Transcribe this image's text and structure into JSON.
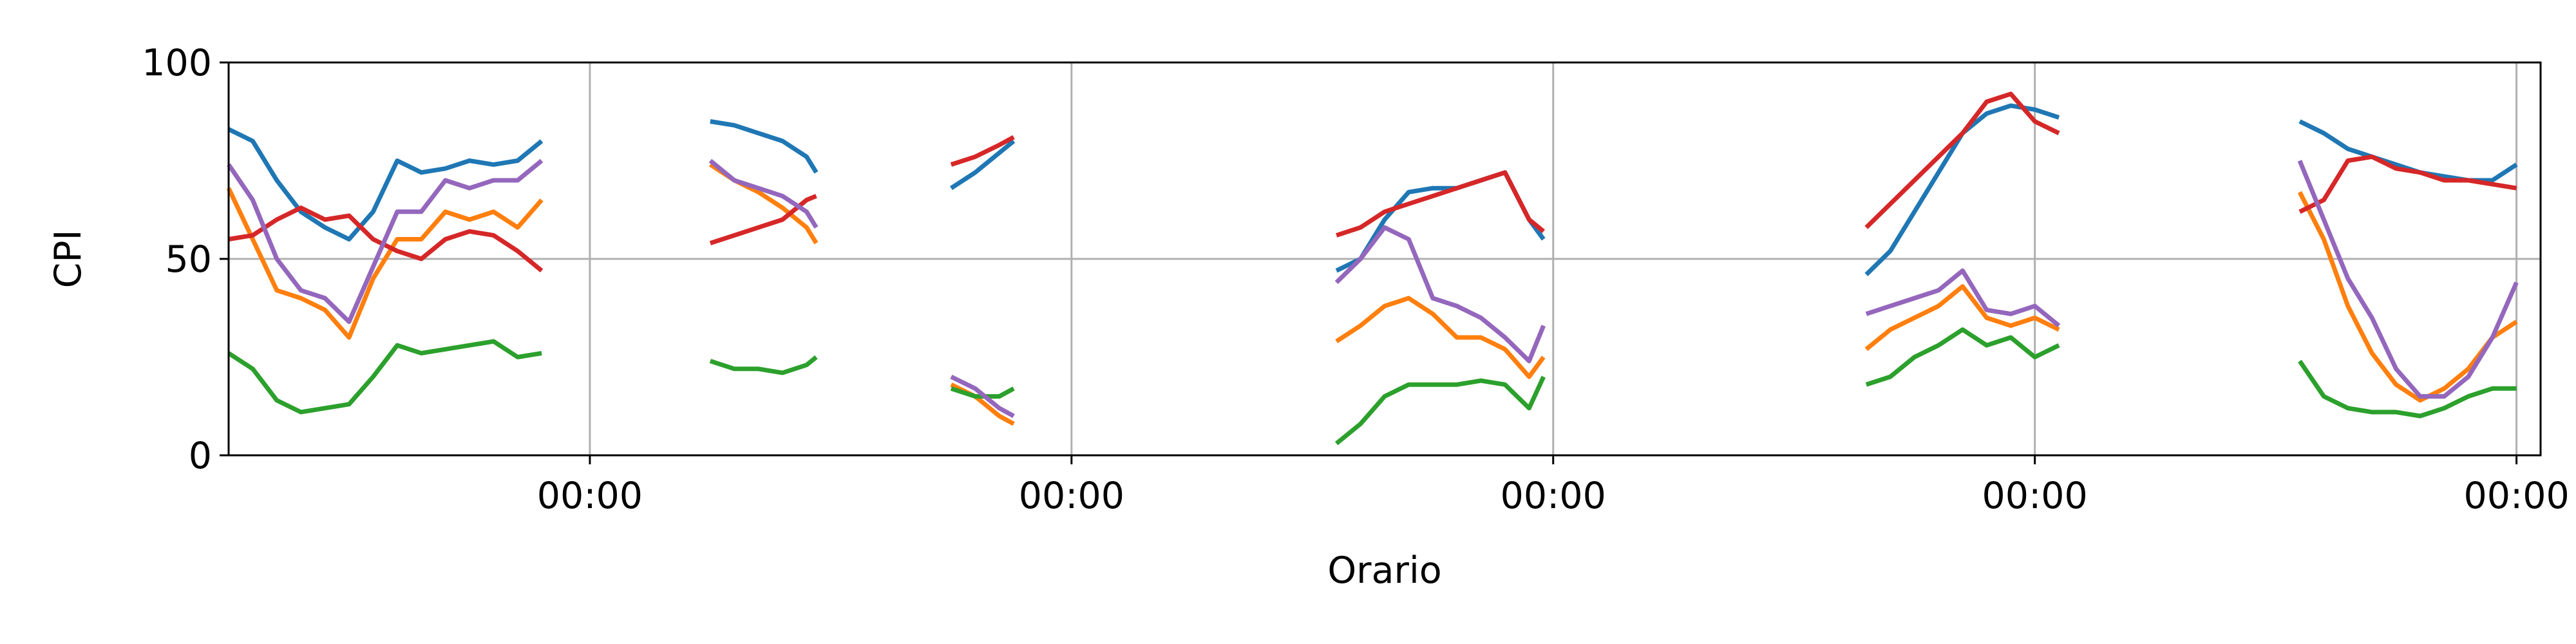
{
  "chart_data": {
    "type": "line",
    "title": "",
    "xlabel": "Orario",
    "ylabel": "CPI",
    "ylim": [
      0,
      100
    ],
    "yticks": [
      0,
      50,
      100
    ],
    "x_range_days": [
      0,
      4.8
    ],
    "xticks": [
      {
        "day": 0.75,
        "label": "00:00"
      },
      {
        "day": 1.75,
        "label": "00:00"
      },
      {
        "day": 2.75,
        "label": "00:00"
      },
      {
        "day": 3.75,
        "label": "00:00"
      },
      {
        "day": 4.75,
        "label": "00:00"
      }
    ],
    "grid": true,
    "legend": "none",
    "series": [
      {
        "color": "#1f77b4",
        "segments": [
          [
            [
              0.0,
              83
            ],
            [
              0.05,
              80
            ],
            [
              0.1,
              70
            ],
            [
              0.15,
              62
            ],
            [
              0.2,
              58
            ],
            [
              0.25,
              55
            ],
            [
              0.3,
              62
            ],
            [
              0.35,
              75
            ],
            [
              0.4,
              72
            ],
            [
              0.45,
              73
            ],
            [
              0.5,
              75
            ],
            [
              0.55,
              74
            ],
            [
              0.6,
              75
            ],
            [
              0.65,
              80
            ]
          ],
          [
            [
              1.0,
              85
            ],
            [
              1.05,
              84
            ],
            [
              1.1,
              82
            ],
            [
              1.15,
              80
            ],
            [
              1.2,
              76
            ],
            [
              1.22,
              72
            ]
          ],
          [
            [
              1.5,
              68
            ],
            [
              1.55,
              72
            ],
            [
              1.6,
              77
            ],
            [
              1.63,
              80
            ]
          ],
          [
            [
              2.3,
              47
            ],
            [
              2.35,
              50
            ],
            [
              2.4,
              60
            ],
            [
              2.45,
              67
            ],
            [
              2.5,
              68
            ],
            [
              2.55,
              68
            ],
            [
              2.6,
              70
            ],
            [
              2.65,
              72
            ],
            [
              2.7,
              60
            ],
            [
              2.73,
              55
            ]
          ],
          [
            [
              3.4,
              46
            ],
            [
              3.45,
              52
            ],
            [
              3.5,
              62
            ],
            [
              3.55,
              72
            ],
            [
              3.6,
              82
            ],
            [
              3.65,
              87
            ],
            [
              3.7,
              89
            ],
            [
              3.75,
              88
            ],
            [
              3.8,
              86
            ]
          ],
          [
            [
              4.3,
              85
            ],
            [
              4.35,
              82
            ],
            [
              4.4,
              78
            ],
            [
              4.45,
              76
            ],
            [
              4.5,
              74
            ],
            [
              4.55,
              72
            ],
            [
              4.6,
              71
            ],
            [
              4.65,
              70
            ],
            [
              4.7,
              70
            ],
            [
              4.75,
              74
            ]
          ]
        ]
      },
      {
        "color": "#ff7f0e",
        "segments": [
          [
            [
              0.0,
              68
            ],
            [
              0.05,
              55
            ],
            [
              0.1,
              42
            ],
            [
              0.15,
              40
            ],
            [
              0.2,
              37
            ],
            [
              0.25,
              30
            ],
            [
              0.3,
              45
            ],
            [
              0.35,
              55
            ],
            [
              0.4,
              55
            ],
            [
              0.45,
              62
            ],
            [
              0.5,
              60
            ],
            [
              0.55,
              62
            ],
            [
              0.6,
              58
            ],
            [
              0.65,
              65
            ]
          ],
          [
            [
              1.0,
              74
            ],
            [
              1.05,
              70
            ],
            [
              1.1,
              67
            ],
            [
              1.15,
              63
            ],
            [
              1.2,
              58
            ],
            [
              1.22,
              54
            ]
          ],
          [
            [
              1.5,
              18
            ],
            [
              1.55,
              15
            ],
            [
              1.6,
              10
            ],
            [
              1.63,
              8
            ]
          ],
          [
            [
              2.3,
              29
            ],
            [
              2.35,
              33
            ],
            [
              2.4,
              38
            ],
            [
              2.45,
              40
            ],
            [
              2.5,
              36
            ],
            [
              2.55,
              30
            ],
            [
              2.6,
              30
            ],
            [
              2.65,
              27
            ],
            [
              2.7,
              20
            ],
            [
              2.73,
              25
            ]
          ],
          [
            [
              3.4,
              27
            ],
            [
              3.45,
              32
            ],
            [
              3.5,
              35
            ],
            [
              3.55,
              38
            ],
            [
              3.6,
              43
            ],
            [
              3.65,
              35
            ],
            [
              3.7,
              33
            ],
            [
              3.75,
              35
            ],
            [
              3.8,
              32
            ]
          ],
          [
            [
              4.3,
              67
            ],
            [
              4.35,
              55
            ],
            [
              4.4,
              38
            ],
            [
              4.45,
              26
            ],
            [
              4.5,
              18
            ],
            [
              4.55,
              14
            ],
            [
              4.6,
              17
            ],
            [
              4.65,
              22
            ],
            [
              4.7,
              30
            ],
            [
              4.75,
              34
            ]
          ]
        ]
      },
      {
        "color": "#2ca02c",
        "segments": [
          [
            [
              0.0,
              26
            ],
            [
              0.05,
              22
            ],
            [
              0.1,
              14
            ],
            [
              0.15,
              11
            ],
            [
              0.2,
              12
            ],
            [
              0.25,
              13
            ],
            [
              0.3,
              20
            ],
            [
              0.35,
              28
            ],
            [
              0.4,
              26
            ],
            [
              0.45,
              27
            ],
            [
              0.5,
              28
            ],
            [
              0.55,
              29
            ],
            [
              0.6,
              25
            ],
            [
              0.65,
              26
            ]
          ],
          [
            [
              1.0,
              24
            ],
            [
              1.05,
              22
            ],
            [
              1.1,
              22
            ],
            [
              1.15,
              21
            ],
            [
              1.2,
              23
            ],
            [
              1.22,
              25
            ]
          ],
          [
            [
              1.5,
              17
            ],
            [
              1.55,
              15
            ],
            [
              1.6,
              15
            ],
            [
              1.63,
              17
            ]
          ],
          [
            [
              2.3,
              3
            ],
            [
              2.35,
              8
            ],
            [
              2.4,
              15
            ],
            [
              2.45,
              18
            ],
            [
              2.5,
              18
            ],
            [
              2.55,
              18
            ],
            [
              2.6,
              19
            ],
            [
              2.65,
              18
            ],
            [
              2.7,
              12
            ],
            [
              2.73,
              20
            ]
          ],
          [
            [
              3.4,
              18
            ],
            [
              3.45,
              20
            ],
            [
              3.5,
              25
            ],
            [
              3.55,
              28
            ],
            [
              3.6,
              32
            ],
            [
              3.65,
              28
            ],
            [
              3.7,
              30
            ],
            [
              3.75,
              25
            ],
            [
              3.8,
              28
            ]
          ],
          [
            [
              4.3,
              24
            ],
            [
              4.35,
              15
            ],
            [
              4.4,
              12
            ],
            [
              4.45,
              11
            ],
            [
              4.5,
              11
            ],
            [
              4.55,
              10
            ],
            [
              4.6,
              12
            ],
            [
              4.65,
              15
            ],
            [
              4.7,
              17
            ],
            [
              4.75,
              17
            ]
          ]
        ]
      },
      {
        "color": "#d62728",
        "segments": [
          [
            [
              0.0,
              55
            ],
            [
              0.05,
              56
            ],
            [
              0.1,
              60
            ],
            [
              0.15,
              63
            ],
            [
              0.2,
              60
            ],
            [
              0.25,
              61
            ],
            [
              0.3,
              55
            ],
            [
              0.35,
              52
            ],
            [
              0.4,
              50
            ],
            [
              0.45,
              55
            ],
            [
              0.5,
              57
            ],
            [
              0.55,
              56
            ],
            [
              0.6,
              52
            ],
            [
              0.65,
              47
            ]
          ],
          [
            [
              1.0,
              54
            ],
            [
              1.05,
              56
            ],
            [
              1.1,
              58
            ],
            [
              1.15,
              60
            ],
            [
              1.2,
              65
            ],
            [
              1.22,
              66
            ]
          ],
          [
            [
              1.5,
              74
            ],
            [
              1.55,
              76
            ],
            [
              1.6,
              79
            ],
            [
              1.63,
              81
            ]
          ],
          [
            [
              2.3,
              56
            ],
            [
              2.35,
              58
            ],
            [
              2.4,
              62
            ],
            [
              2.45,
              64
            ],
            [
              2.5,
              66
            ],
            [
              2.55,
              68
            ],
            [
              2.6,
              70
            ],
            [
              2.65,
              72
            ],
            [
              2.7,
              60
            ],
            [
              2.73,
              57
            ]
          ],
          [
            [
              3.4,
              58
            ],
            [
              3.45,
              64
            ],
            [
              3.5,
              70
            ],
            [
              3.55,
              76
            ],
            [
              3.6,
              82
            ],
            [
              3.65,
              90
            ],
            [
              3.7,
              92
            ],
            [
              3.75,
              85
            ],
            [
              3.8,
              82
            ]
          ],
          [
            [
              4.3,
              62
            ],
            [
              4.35,
              65
            ],
            [
              4.4,
              75
            ],
            [
              4.45,
              76
            ],
            [
              4.5,
              73
            ],
            [
              4.55,
              72
            ],
            [
              4.6,
              70
            ],
            [
              4.65,
              70
            ],
            [
              4.7,
              69
            ],
            [
              4.75,
              68
            ]
          ]
        ]
      },
      {
        "color": "#9467bd",
        "segments": [
          [
            [
              0.0,
              74
            ],
            [
              0.05,
              65
            ],
            [
              0.1,
              50
            ],
            [
              0.15,
              42
            ],
            [
              0.2,
              40
            ],
            [
              0.25,
              34
            ],
            [
              0.3,
              48
            ],
            [
              0.35,
              62
            ],
            [
              0.4,
              62
            ],
            [
              0.45,
              70
            ],
            [
              0.5,
              68
            ],
            [
              0.55,
              70
            ],
            [
              0.6,
              70
            ],
            [
              0.65,
              75
            ]
          ],
          [
            [
              1.0,
              75
            ],
            [
              1.05,
              70
            ],
            [
              1.1,
              68
            ],
            [
              1.15,
              66
            ],
            [
              1.2,
              62
            ],
            [
              1.22,
              58
            ]
          ],
          [
            [
              1.5,
              20
            ],
            [
              1.55,
              17
            ],
            [
              1.6,
              12
            ],
            [
              1.63,
              10
            ]
          ],
          [
            [
              2.3,
              44
            ],
            [
              2.35,
              50
            ],
            [
              2.4,
              58
            ],
            [
              2.45,
              55
            ],
            [
              2.5,
              40
            ],
            [
              2.55,
              38
            ],
            [
              2.6,
              35
            ],
            [
              2.65,
              30
            ],
            [
              2.7,
              24
            ],
            [
              2.73,
              33
            ]
          ],
          [
            [
              3.4,
              36
            ],
            [
              3.45,
              38
            ],
            [
              3.5,
              40
            ],
            [
              3.55,
              42
            ],
            [
              3.6,
              47
            ],
            [
              3.65,
              37
            ],
            [
              3.7,
              36
            ],
            [
              3.75,
              38
            ],
            [
              3.8,
              33
            ]
          ],
          [
            [
              4.3,
              75
            ],
            [
              4.35,
              60
            ],
            [
              4.4,
              45
            ],
            [
              4.45,
              35
            ],
            [
              4.5,
              22
            ],
            [
              4.55,
              15
            ],
            [
              4.6,
              15
            ],
            [
              4.65,
              20
            ],
            [
              4.7,
              30
            ],
            [
              4.75,
              44
            ]
          ]
        ]
      }
    ]
  }
}
